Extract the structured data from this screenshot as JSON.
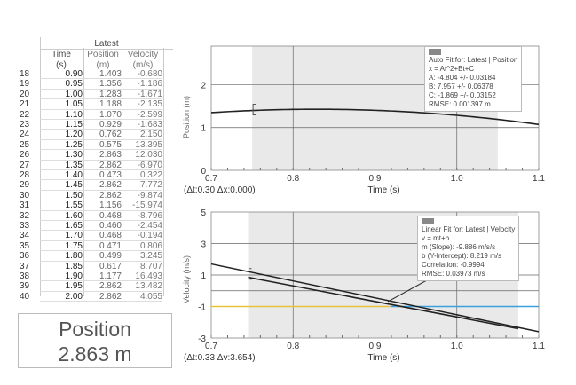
{
  "table": {
    "group_header": "Latest",
    "columns": [
      {
        "name": "Time",
        "unit": "(s)"
      },
      {
        "name": "Position",
        "unit": "(m)"
      },
      {
        "name": "Velocity",
        "unit": "(m/s)"
      }
    ],
    "rows": [
      [
        "18",
        "0.90",
        "1.403",
        "-0.680"
      ],
      [
        "19",
        "0.95",
        "1.356",
        "-1.186"
      ],
      [
        "20",
        "1.00",
        "1.283",
        "-1.671"
      ],
      [
        "21",
        "1.05",
        "1.188",
        "-2.135"
      ],
      [
        "22",
        "1.10",
        "1.070",
        "-2.599"
      ],
      [
        "23",
        "1.15",
        "0.929",
        "-1.683"
      ],
      [
        "24",
        "1.20",
        "0.762",
        "2.150"
      ],
      [
        "25",
        "1.25",
        "0.575",
        "13.395"
      ],
      [
        "26",
        "1.30",
        "2.863",
        "12.030"
      ],
      [
        "27",
        "1.35",
        "2.862",
        "-6.970"
      ],
      [
        "28",
        "1.40",
        "0.473",
        "0.322"
      ],
      [
        "29",
        "1.45",
        "2.862",
        "7.772"
      ],
      [
        "30",
        "1.50",
        "2.862",
        "-9.874"
      ],
      [
        "31",
        "1.55",
        "1.156",
        "-15.974"
      ],
      [
        "32",
        "1.60",
        "0.468",
        "-8.796"
      ],
      [
        "33",
        "1.65",
        "0.460",
        "-2.454"
      ],
      [
        "34",
        "1.70",
        "0.468",
        "-0.194"
      ],
      [
        "35",
        "1.75",
        "0.471",
        "0.806"
      ],
      [
        "36",
        "1.80",
        "0.499",
        "3.245"
      ],
      [
        "37",
        "1.85",
        "0.617",
        "8.707"
      ],
      [
        "38",
        "1.90",
        "1.177",
        "16.493"
      ],
      [
        "39",
        "1.95",
        "2.862",
        "13.482"
      ],
      [
        "40",
        "2.00",
        "2.862",
        "4.055"
      ]
    ]
  },
  "meter": {
    "label": "Position",
    "value": "2.863 m"
  },
  "chart_data": [
    {
      "type": "line",
      "xlabel": "Time (s)",
      "ylabel": "Position (m)",
      "xlim": [
        0.7,
        1.1
      ],
      "ylim": [
        0,
        2.9
      ],
      "xticks": [
        "0.7",
        "0.8",
        "0.9",
        "1.0",
        "1.1"
      ],
      "yticks": [
        "0",
        "1",
        "2"
      ],
      "selection": [
        0.75,
        1.05
      ],
      "delta_readout": "(Δt:0.30 Δx:0.000)",
      "fit_model": {
        "kind": "quadratic",
        "A": -4.804,
        "B": 7.957,
        "C": -1.869
      },
      "fit_box": {
        "lines": [
          "Auto Fit for: Latest | Position",
          "x = At^2+Bt+C",
          "A: -4.804 +/- 0.03184",
          "B: 7.957 +/- 0.06378",
          "C: -1.869 +/- 0.03152",
          "RMSE: 0.001397 m"
        ]
      }
    },
    {
      "type": "line",
      "xlabel": "Time (s)",
      "ylabel": "Velocity (m/s)",
      "xlim": [
        0.7,
        1.1
      ],
      "ylim": [
        -3,
        5
      ],
      "xticks": [
        "0.7",
        "0.8",
        "0.9",
        "1.0",
        "1.1"
      ],
      "yticks": [
        "5",
        "3",
        "1",
        "-1",
        "-3"
      ],
      "selection": [
        0.745,
        1.075
      ],
      "delta_readout": "(Δt:0.33 Δv:3.654)",
      "data_line": {
        "x": [
          0.7,
          1.1
        ],
        "y": [
          1.7,
          -2.6
        ]
      },
      "reference_line": {
        "y": -1,
        "color": "#3aa0e0"
      },
      "fit_model": {
        "kind": "linear",
        "m": -9.886,
        "b": 8.219
      },
      "fit_box": {
        "lines": [
          "Linear Fit for: Latest | Velocity",
          "v = mt+b",
          "m (Slope): -9.886 m/s/s",
          "b (Y-Intercept): 8.219 m/s",
          "Correlation: -0.9994",
          "RMSE: 0.03973 m/s"
        ]
      }
    }
  ]
}
